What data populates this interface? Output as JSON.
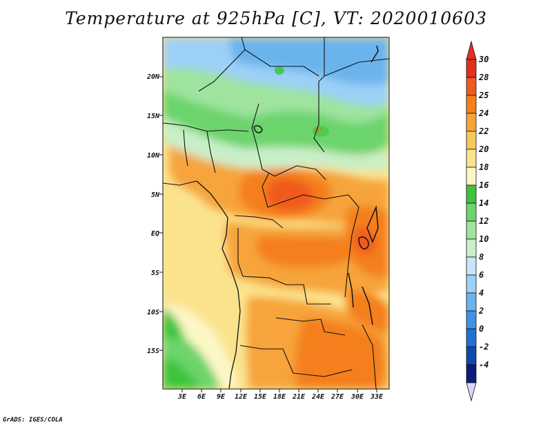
{
  "title": "Temperature at 925hPa [C], VT: 2020010603",
  "footer": "GrADS: IGES/COLA",
  "map": {
    "variable": "Temperature",
    "level": "925hPa",
    "units": "C",
    "valid_time": "2020010603",
    "lat_labels": [
      "20N",
      "15N",
      "10N",
      "5N",
      "EQ",
      "5S",
      "10S",
      "15S"
    ],
    "lon_labels": [
      "3E",
      "6E",
      "9E",
      "12E",
      "15E",
      "18E",
      "21E",
      "24E",
      "27E",
      "30E",
      "33E"
    ]
  },
  "colorbar": {
    "labels": [
      "30",
      "28",
      "25",
      "24",
      "22",
      "20",
      "18",
      "16",
      "14",
      "12",
      "10",
      "8",
      "6",
      "4",
      "2",
      "0",
      "-2",
      "-4"
    ],
    "colors": [
      "#e0301e",
      "#f05a1a",
      "#f47f1f",
      "#f6a43a",
      "#f9c85a",
      "#fbe38e",
      "#fdf7c6",
      "#3ec43e",
      "#6cd46c",
      "#9fe39f",
      "#c9efc9",
      "#c8e5fb",
      "#9cd0f6",
      "#6ab4ee",
      "#3f93e3",
      "#2070d2",
      "#1047aa",
      "#0d1b78"
    ],
    "lower_arrow_color": "#d7d9f7"
  },
  "colors": {
    "border": "#111111",
    "background": "#ffffff"
  }
}
